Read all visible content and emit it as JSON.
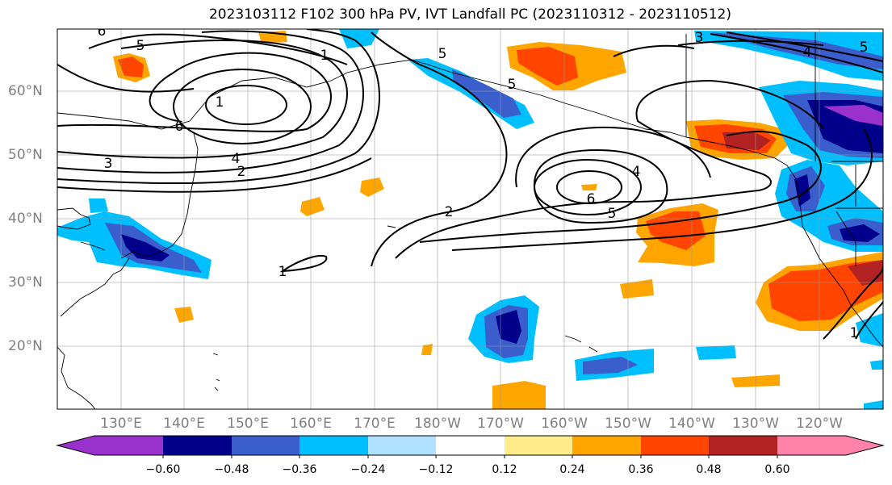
{
  "title": "2023103112 F102 300 hPa PV, IVT Landfall PC (2023110312 - 2023110512)",
  "latitude_labels": [
    "60°N",
    "50°N",
    "40°N",
    "30°N",
    "20°N"
  ],
  "longitude_labels": [
    "130°E",
    "140°E",
    "150°E",
    "160°E",
    "170°E",
    "180°W",
    "170°W",
    "160°W",
    "150°W",
    "140°W",
    "130°W",
    "120°W"
  ],
  "colorbar": {
    "colors": [
      "#9932cc",
      "#00008b",
      "#3a5fcd",
      "#00bfff",
      "#b0e2ff",
      "#ffffff",
      "#ffec8b",
      "#ffa500",
      "#ff4500",
      "#b22222",
      "#ff82ab"
    ],
    "tick_labels": [
      "−0.60",
      "−0.48",
      "−0.36",
      "−0.24",
      "−0.12",
      "0.12",
      "0.24",
      "0.36",
      "0.48",
      "0.60"
    ]
  },
  "contour_labels": [
    "6",
    "5",
    "1",
    "1",
    "6",
    "4",
    "3",
    "2",
    "5",
    "5",
    "2",
    "1",
    "4",
    "6",
    "5",
    "3",
    "4",
    "5",
    "1"
  ]
}
